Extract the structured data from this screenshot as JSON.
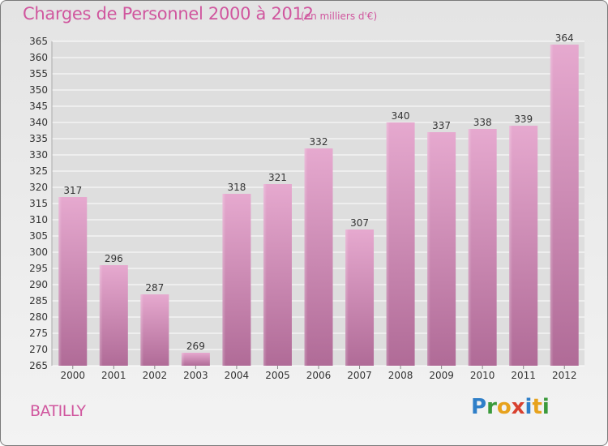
{
  "chart_data": {
    "type": "bar",
    "title": "Charges de Personnel 2000 à 2012",
    "subtitle": "(en milliers d'€)",
    "categories": [
      "2000",
      "2001",
      "2002",
      "2003",
      "2004",
      "2005",
      "2006",
      "2007",
      "2008",
      "2009",
      "2010",
      "2011",
      "2012"
    ],
    "values": [
      317,
      296,
      287,
      269,
      318,
      321,
      332,
      307,
      340,
      337,
      338,
      339,
      364
    ],
    "ylim": [
      265,
      365
    ],
    "yticks": [
      265,
      270,
      275,
      280,
      285,
      290,
      295,
      300,
      305,
      310,
      315,
      320,
      325,
      330,
      335,
      340,
      345,
      350,
      355,
      360,
      365
    ],
    "grid": true,
    "bar_color": "#d98dbb"
  },
  "commune": "BATILLY",
  "logo": {
    "letters": [
      {
        "ch": "P",
        "color": "#2f7fc8"
      },
      {
        "ch": "r",
        "color": "#3b9a3b"
      },
      {
        "ch": "o",
        "color": "#e7a21d"
      },
      {
        "ch": "x",
        "color": "#d8412f"
      },
      {
        "ch": "i",
        "color": "#2f7fc8"
      },
      {
        "ch": "t",
        "color": "#e7a21d"
      },
      {
        "ch": "i",
        "color": "#3b9a3b"
      }
    ]
  },
  "colors": {
    "title": "#d0569e",
    "grid": "#ffffff",
    "axis_text": "#333333"
  }
}
